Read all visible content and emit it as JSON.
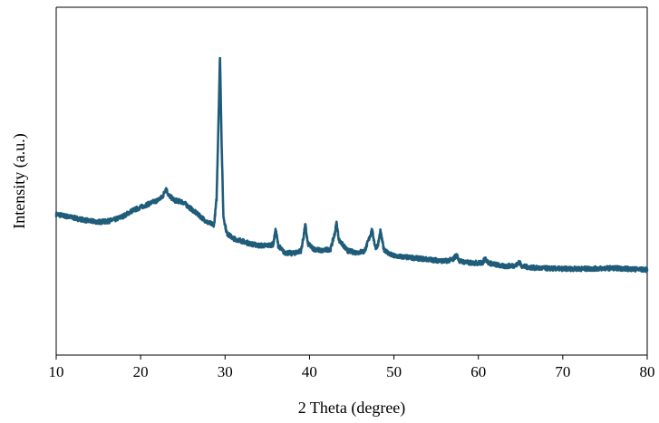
{
  "chart_data": {
    "type": "line",
    "title": "",
    "xlabel": "2 Theta (degree)",
    "ylabel": "Intensity (a.u.)",
    "xlim": [
      10,
      80
    ],
    "ylim": [
      0,
      100
    ],
    "x_ticks": [
      10,
      20,
      30,
      40,
      50,
      60,
      70,
      80
    ],
    "y_ticks_shown": false,
    "grid": false,
    "legend": "none",
    "series": [
      {
        "color": "#1f5c7a",
        "points": [
          [
            10,
            40.5
          ],
          [
            11,
            40.0
          ],
          [
            12,
            39.5
          ],
          [
            13,
            39.0
          ],
          [
            14,
            38.5
          ],
          [
            15,
            38.3
          ],
          [
            16,
            38.4
          ],
          [
            17,
            39.0
          ],
          [
            18,
            40.0
          ],
          [
            19,
            41.5
          ],
          [
            20,
            42.5
          ],
          [
            21,
            43.5
          ],
          [
            22,
            44.5
          ],
          [
            22.6,
            45.5
          ],
          [
            23.0,
            48.0
          ],
          [
            23.3,
            46.0
          ],
          [
            24,
            44.5
          ],
          [
            25,
            44.0
          ],
          [
            26,
            42.0
          ],
          [
            27,
            40.0
          ],
          [
            28,
            38.0
          ],
          [
            28.7,
            37.5
          ],
          [
            29.0,
            45.0
          ],
          [
            29.2,
            65.0
          ],
          [
            29.4,
            86.0
          ],
          [
            29.6,
            60.0
          ],
          [
            29.8,
            40.0
          ],
          [
            30.2,
            35.0
          ],
          [
            31,
            33.5
          ],
          [
            32,
            32.8
          ],
          [
            33,
            32.0
          ],
          [
            34,
            31.5
          ],
          [
            35,
            31.5
          ],
          [
            35.7,
            31.8
          ],
          [
            36.0,
            36.0
          ],
          [
            36.3,
            31.5
          ],
          [
            37,
            29.5
          ],
          [
            38,
            29.2
          ],
          [
            39,
            30.0
          ],
          [
            39.3,
            34.0
          ],
          [
            39.5,
            37.5
          ],
          [
            39.8,
            32.0
          ],
          [
            40.5,
            30.5
          ],
          [
            41.5,
            30.0
          ],
          [
            42.5,
            30.5
          ],
          [
            43.0,
            35.0
          ],
          [
            43.2,
            38.0
          ],
          [
            43.5,
            33.0
          ],
          [
            44.5,
            30.0
          ],
          [
            45.5,
            29.5
          ],
          [
            46.5,
            29.8
          ],
          [
            47.0,
            33.0
          ],
          [
            47.4,
            36.0
          ],
          [
            47.8,
            31.0
          ],
          [
            48.1,
            31.5
          ],
          [
            48.4,
            35.5
          ],
          [
            48.8,
            30.5
          ],
          [
            49.5,
            29.0
          ],
          [
            50,
            28.5
          ],
          [
            52,
            28.0
          ],
          [
            54,
            27.5
          ],
          [
            56,
            27.0
          ],
          [
            57.0,
            27.5
          ],
          [
            57.4,
            28.8
          ],
          [
            57.8,
            27.0
          ],
          [
            59,
            26.5
          ],
          [
            60.5,
            26.5
          ],
          [
            60.8,
            27.8
          ],
          [
            61.2,
            26.5
          ],
          [
            63,
            25.5
          ],
          [
            64.5,
            25.8
          ],
          [
            64.8,
            26.8
          ],
          [
            65.2,
            25.5
          ],
          [
            67,
            25.0
          ],
          [
            70,
            24.8
          ],
          [
            73,
            24.8
          ],
          [
            76,
            25.0
          ],
          [
            80,
            24.5
          ]
        ]
      }
    ]
  }
}
